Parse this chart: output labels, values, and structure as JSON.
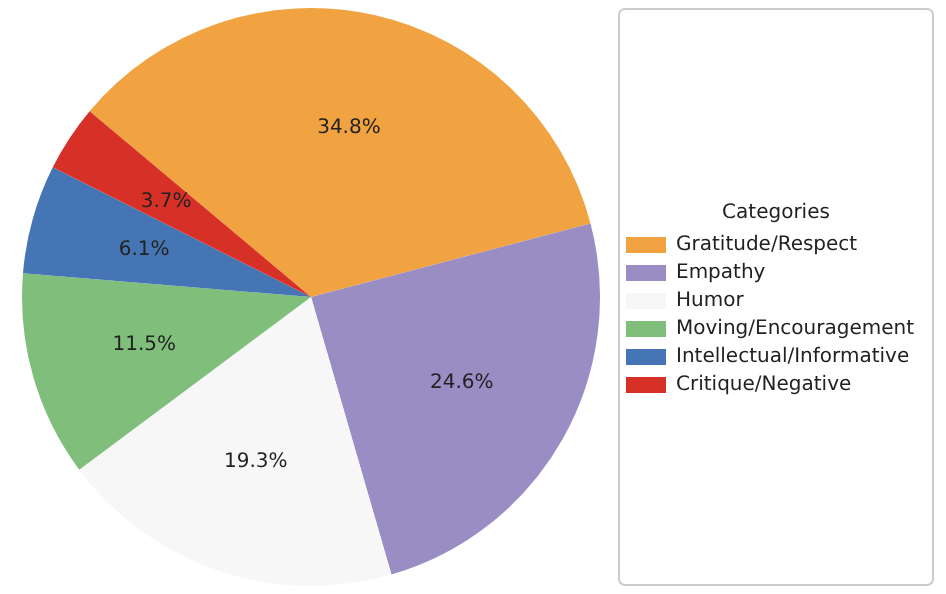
{
  "chart_data": {
    "type": "pie",
    "legend_title": "Categories",
    "legend": "right",
    "categories": [
      "Gratitude/Respect",
      "Empathy",
      "Humor",
      "Moving/Encouragement",
      "Intellectual/Informative",
      "Critique/Negative"
    ],
    "values": [
      34.8,
      24.6,
      19.3,
      11.5,
      6.1,
      3.7
    ],
    "colors": [
      "#f0a340",
      "#998dc4",
      "#f7f7f7",
      "#7fbf7b",
      "#4575b4",
      "#d73027"
    ],
    "value_labels": [
      "34.8%",
      "24.6%",
      "19.3%",
      "11.5%",
      "6.1%",
      "3.7%"
    ]
  }
}
